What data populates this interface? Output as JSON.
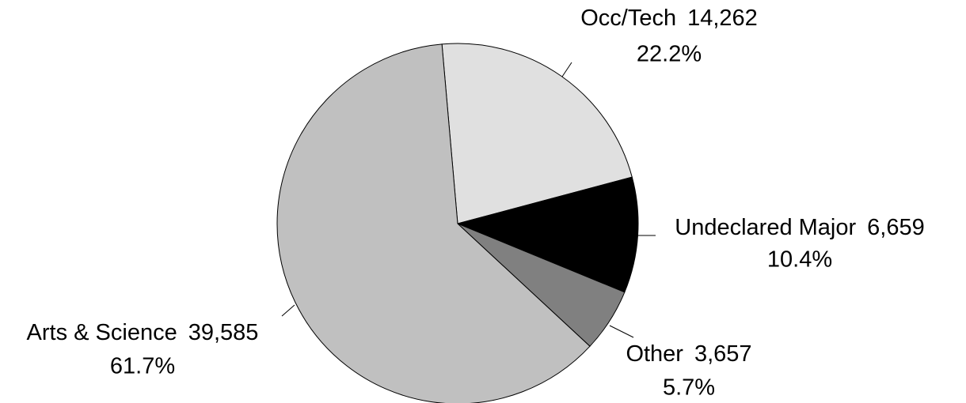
{
  "chart_data": {
    "type": "pie",
    "categories": [
      "Occ/Tech",
      "Undeclared Major",
      "Other",
      "Arts & Science"
    ],
    "values": [
      14262,
      6659,
      3657,
      39585
    ],
    "value_labels": [
      "14,262",
      "6,659",
      "3,657",
      "39,585"
    ],
    "percents": [
      22.2,
      10.4,
      5.7,
      61.7
    ],
    "percent_labels": [
      "22.2%",
      "10.4%",
      "5.7%",
      "61.7%"
    ],
    "colors": [
      "#e0e0e0",
      "#000000",
      "#808080",
      "#c0c0c0"
    ]
  }
}
